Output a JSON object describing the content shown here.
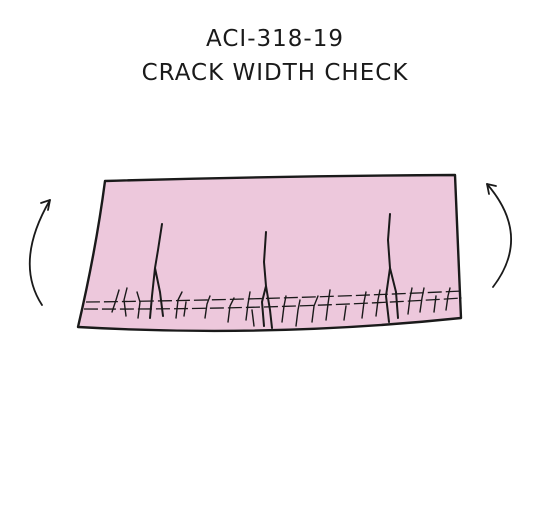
{
  "title": {
    "code": "ACI-318-19",
    "subtitle": "CRACK WIDTH CHECK"
  },
  "colors": {
    "beam_fill": "#EDC8DC",
    "line": "#1a1a1a",
    "background": "#ffffff"
  },
  "icons": {
    "left_moment": "curved-arrow-counterclockwise",
    "right_moment": "curved-arrow-clockwise"
  }
}
